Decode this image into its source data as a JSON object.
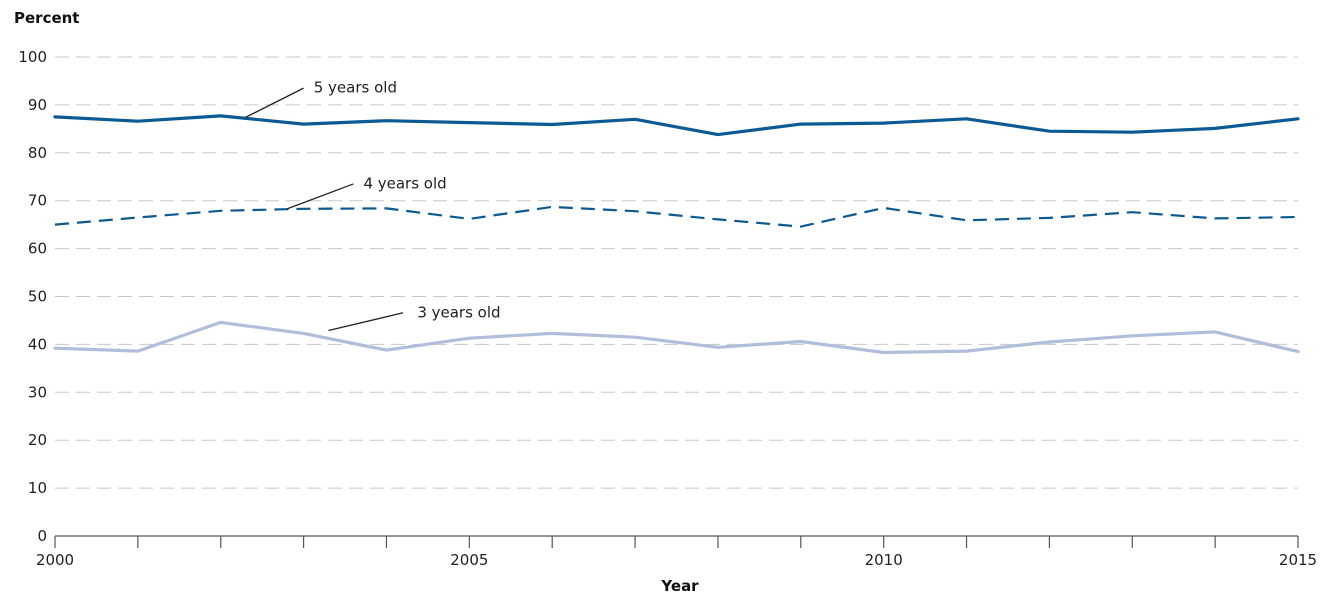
{
  "chart_data": {
    "type": "line",
    "title": "",
    "ylabel": "Percent",
    "xlabel": "Year",
    "xlim": [
      2000,
      2015
    ],
    "ylim": [
      0,
      100
    ],
    "grid": true,
    "x_tick_labels": [
      "2000",
      "2005",
      "2010",
      "2015"
    ],
    "x_tick_values": [
      2000,
      2005,
      2010,
      2015
    ],
    "y_tick_labels": [
      "0",
      "10",
      "20",
      "30",
      "40",
      "50",
      "60",
      "70",
      "80",
      "90",
      "100"
    ],
    "y_tick_values": [
      0,
      10,
      20,
      30,
      40,
      50,
      60,
      70,
      80,
      90,
      100
    ],
    "x": [
      2000,
      2001,
      2002,
      2003,
      2004,
      2005,
      2006,
      2007,
      2008,
      2009,
      2010,
      2011,
      2012,
      2013,
      2014,
      2015
    ],
    "series": [
      {
        "name": "5 years old",
        "color": "#0c5a93",
        "style": "solid",
        "values": [
          87.5,
          86.6,
          87.7,
          86.0,
          86.7,
          86.3,
          85.9,
          87.0,
          83.8,
          86.0,
          86.2,
          87.1,
          84.5,
          84.3,
          85.1,
          87.1
        ]
      },
      {
        "name": "4 years old",
        "color": "#0c5a93",
        "style": "dashed",
        "values": [
          65.0,
          66.5,
          67.9,
          68.3,
          68.4,
          66.2,
          68.7,
          67.8,
          66.1,
          64.6,
          68.5,
          65.9,
          66.4,
          67.6,
          66.3,
          66.6
        ]
      },
      {
        "name": "3 years old",
        "color": "#b0bedb",
        "style": "solid",
        "values": [
          39.2,
          38.6,
          44.6,
          42.3,
          38.8,
          41.3,
          42.3,
          41.5,
          39.4,
          40.6,
          38.3,
          38.6,
          40.5,
          41.8,
          42.6,
          38.5
        ]
      }
    ]
  }
}
